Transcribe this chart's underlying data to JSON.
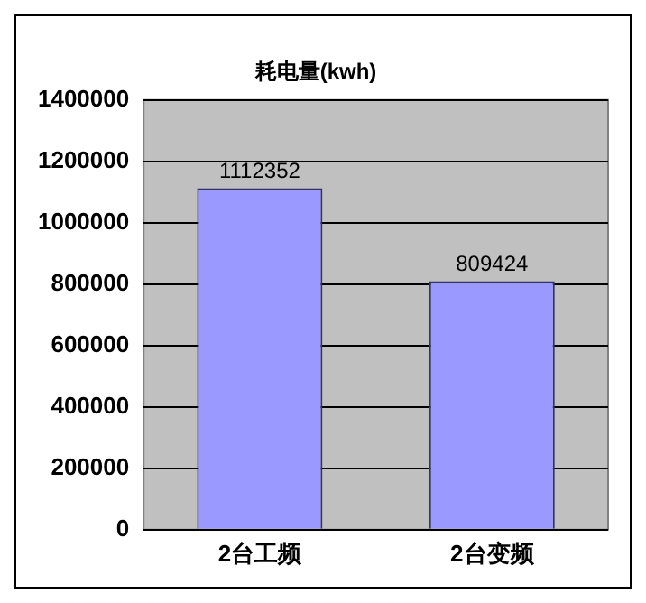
{
  "chart_data": {
    "type": "bar",
    "title": "耗电量(kwh)",
    "categories": [
      "2台工频",
      "2台变频"
    ],
    "values": [
      1112352,
      809424
    ],
    "color": "#9999ff",
    "ylim": [
      0,
      1400000
    ],
    "yticks": [
      0,
      200000,
      400000,
      600000,
      800000,
      1000000,
      1200000,
      1400000
    ],
    "grid": "y",
    "data_labels": true
  }
}
